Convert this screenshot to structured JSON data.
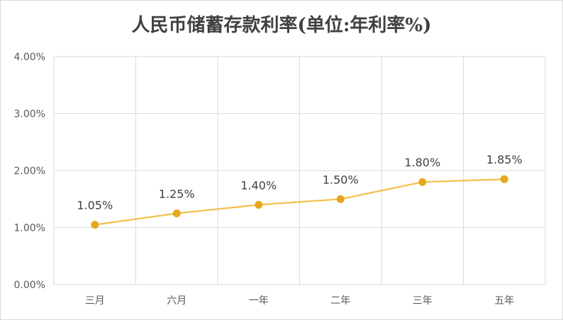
{
  "chart_data": {
    "type": "line",
    "title": "人民币储蓄存款利率(单位:年利率%)",
    "xlabel": "",
    "ylabel": "",
    "categories": [
      "三月",
      "六月",
      "一年",
      "二年",
      "三年",
      "五年"
    ],
    "series": [
      {
        "values": [
          1.05,
          1.25,
          1.4,
          1.5,
          1.8,
          1.85
        ],
        "labels": [
          "1.05%",
          "1.25%",
          "1.40%",
          "1.50%",
          "1.80%",
          "1.85%"
        ]
      }
    ],
    "yticks": [
      {
        "value": 0,
        "label": "0.00%"
      },
      {
        "value": 1,
        "label": "1.00%"
      },
      {
        "value": 2,
        "label": "2.00%"
      },
      {
        "value": 3,
        "label": "3.00%"
      },
      {
        "value": 4,
        "label": "4.00%"
      }
    ],
    "ylim": [
      0,
      4
    ],
    "grid": "both",
    "legend": "none",
    "colors": {
      "line": "#f2c14e",
      "marker": "#e3a81d",
      "grid": "#d9d9d9",
      "text": "#404040"
    }
  }
}
